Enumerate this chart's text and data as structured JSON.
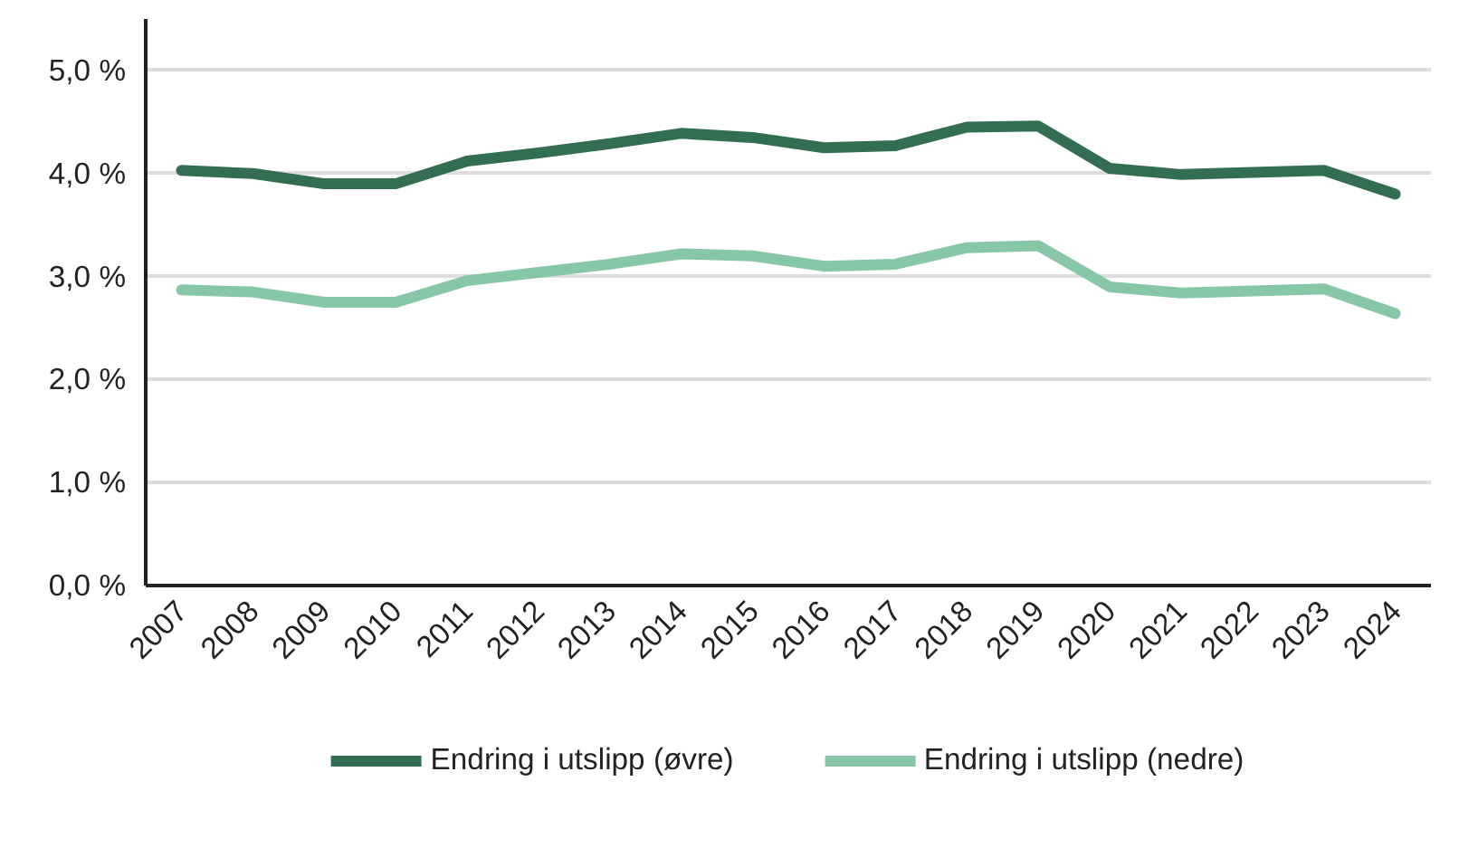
{
  "chart_data": {
    "type": "line",
    "categories": [
      "2007",
      "2008",
      "2009",
      "2010",
      "2011",
      "2012",
      "2013",
      "2014",
      "2015",
      "2016",
      "2017",
      "2018",
      "2019",
      "2020",
      "2021",
      "2022",
      "2023",
      "2024"
    ],
    "series": [
      {
        "name": "Endring i utslipp (øvre)",
        "color": "#336e52",
        "values": [
          4.03,
          4.0,
          3.9,
          3.9,
          4.12,
          4.2,
          4.29,
          4.39,
          4.35,
          4.25,
          4.27,
          4.45,
          4.46,
          4.05,
          3.99,
          4.01,
          4.03,
          3.8
        ]
      },
      {
        "name": "Endring i utslipp (nedre)",
        "color": "#88c6a8",
        "values": [
          2.87,
          2.85,
          2.75,
          2.75,
          2.96,
          3.04,
          3.12,
          3.22,
          3.2,
          3.1,
          3.12,
          3.28,
          3.3,
          2.9,
          2.84,
          2.86,
          2.88,
          2.64
        ]
      }
    ],
    "ylim": [
      0,
      5.5
    ],
    "yticks": [
      {
        "value": 0,
        "label": "0,0 %"
      },
      {
        "value": 1,
        "label": "1,0 %"
      },
      {
        "value": 2,
        "label": "2,0 %"
      },
      {
        "value": 3,
        "label": "3,0 %"
      },
      {
        "value": 4,
        "label": "4,0 %"
      },
      {
        "value": 5,
        "label": "5,0 %"
      }
    ],
    "grid": "y",
    "legend": "bottom",
    "marker": "none",
    "line_style": "solid"
  }
}
